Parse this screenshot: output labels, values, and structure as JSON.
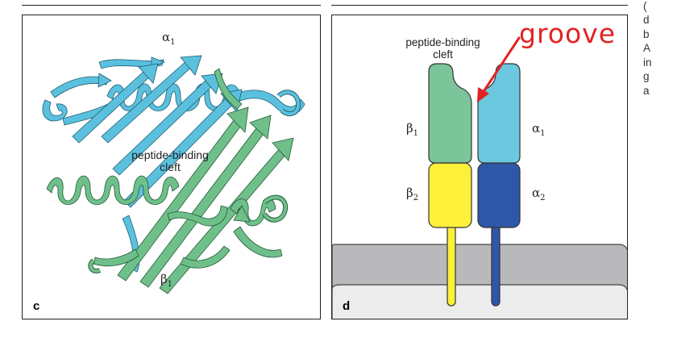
{
  "panel_c": {
    "letter": "c",
    "alpha_label": "α",
    "alpha_sub": "1",
    "beta_label": "β",
    "beta_sub": "1",
    "cleft_line1": "peptide-binding",
    "cleft_line2": "cleft",
    "colors": {
      "alpha_chain": "#5bc0de",
      "beta_chain": "#6fbf8a"
    }
  },
  "panel_d": {
    "letter": "d",
    "cleft_line1": "peptide-binding",
    "cleft_line2": "cleft",
    "annotation": "groove",
    "labels": {
      "beta1": "β",
      "beta1_sub": "1",
      "beta2": "β",
      "beta2_sub": "2",
      "alpha1": "α",
      "alpha1_sub": "1",
      "alpha2": "α",
      "alpha2_sub": "2"
    },
    "colors": {
      "beta1": "#7cc49a",
      "beta2": "#fdf03a",
      "alpha1": "#6cc8de",
      "alpha2": "#2e57a8",
      "annotation": "#e32222",
      "membrane": "#b9b9bc",
      "cytoplasm": "#ececec"
    }
  },
  "side_text": [
    "(",
    "d",
    "b",
    "A",
    "in",
    "g",
    "a"
  ]
}
